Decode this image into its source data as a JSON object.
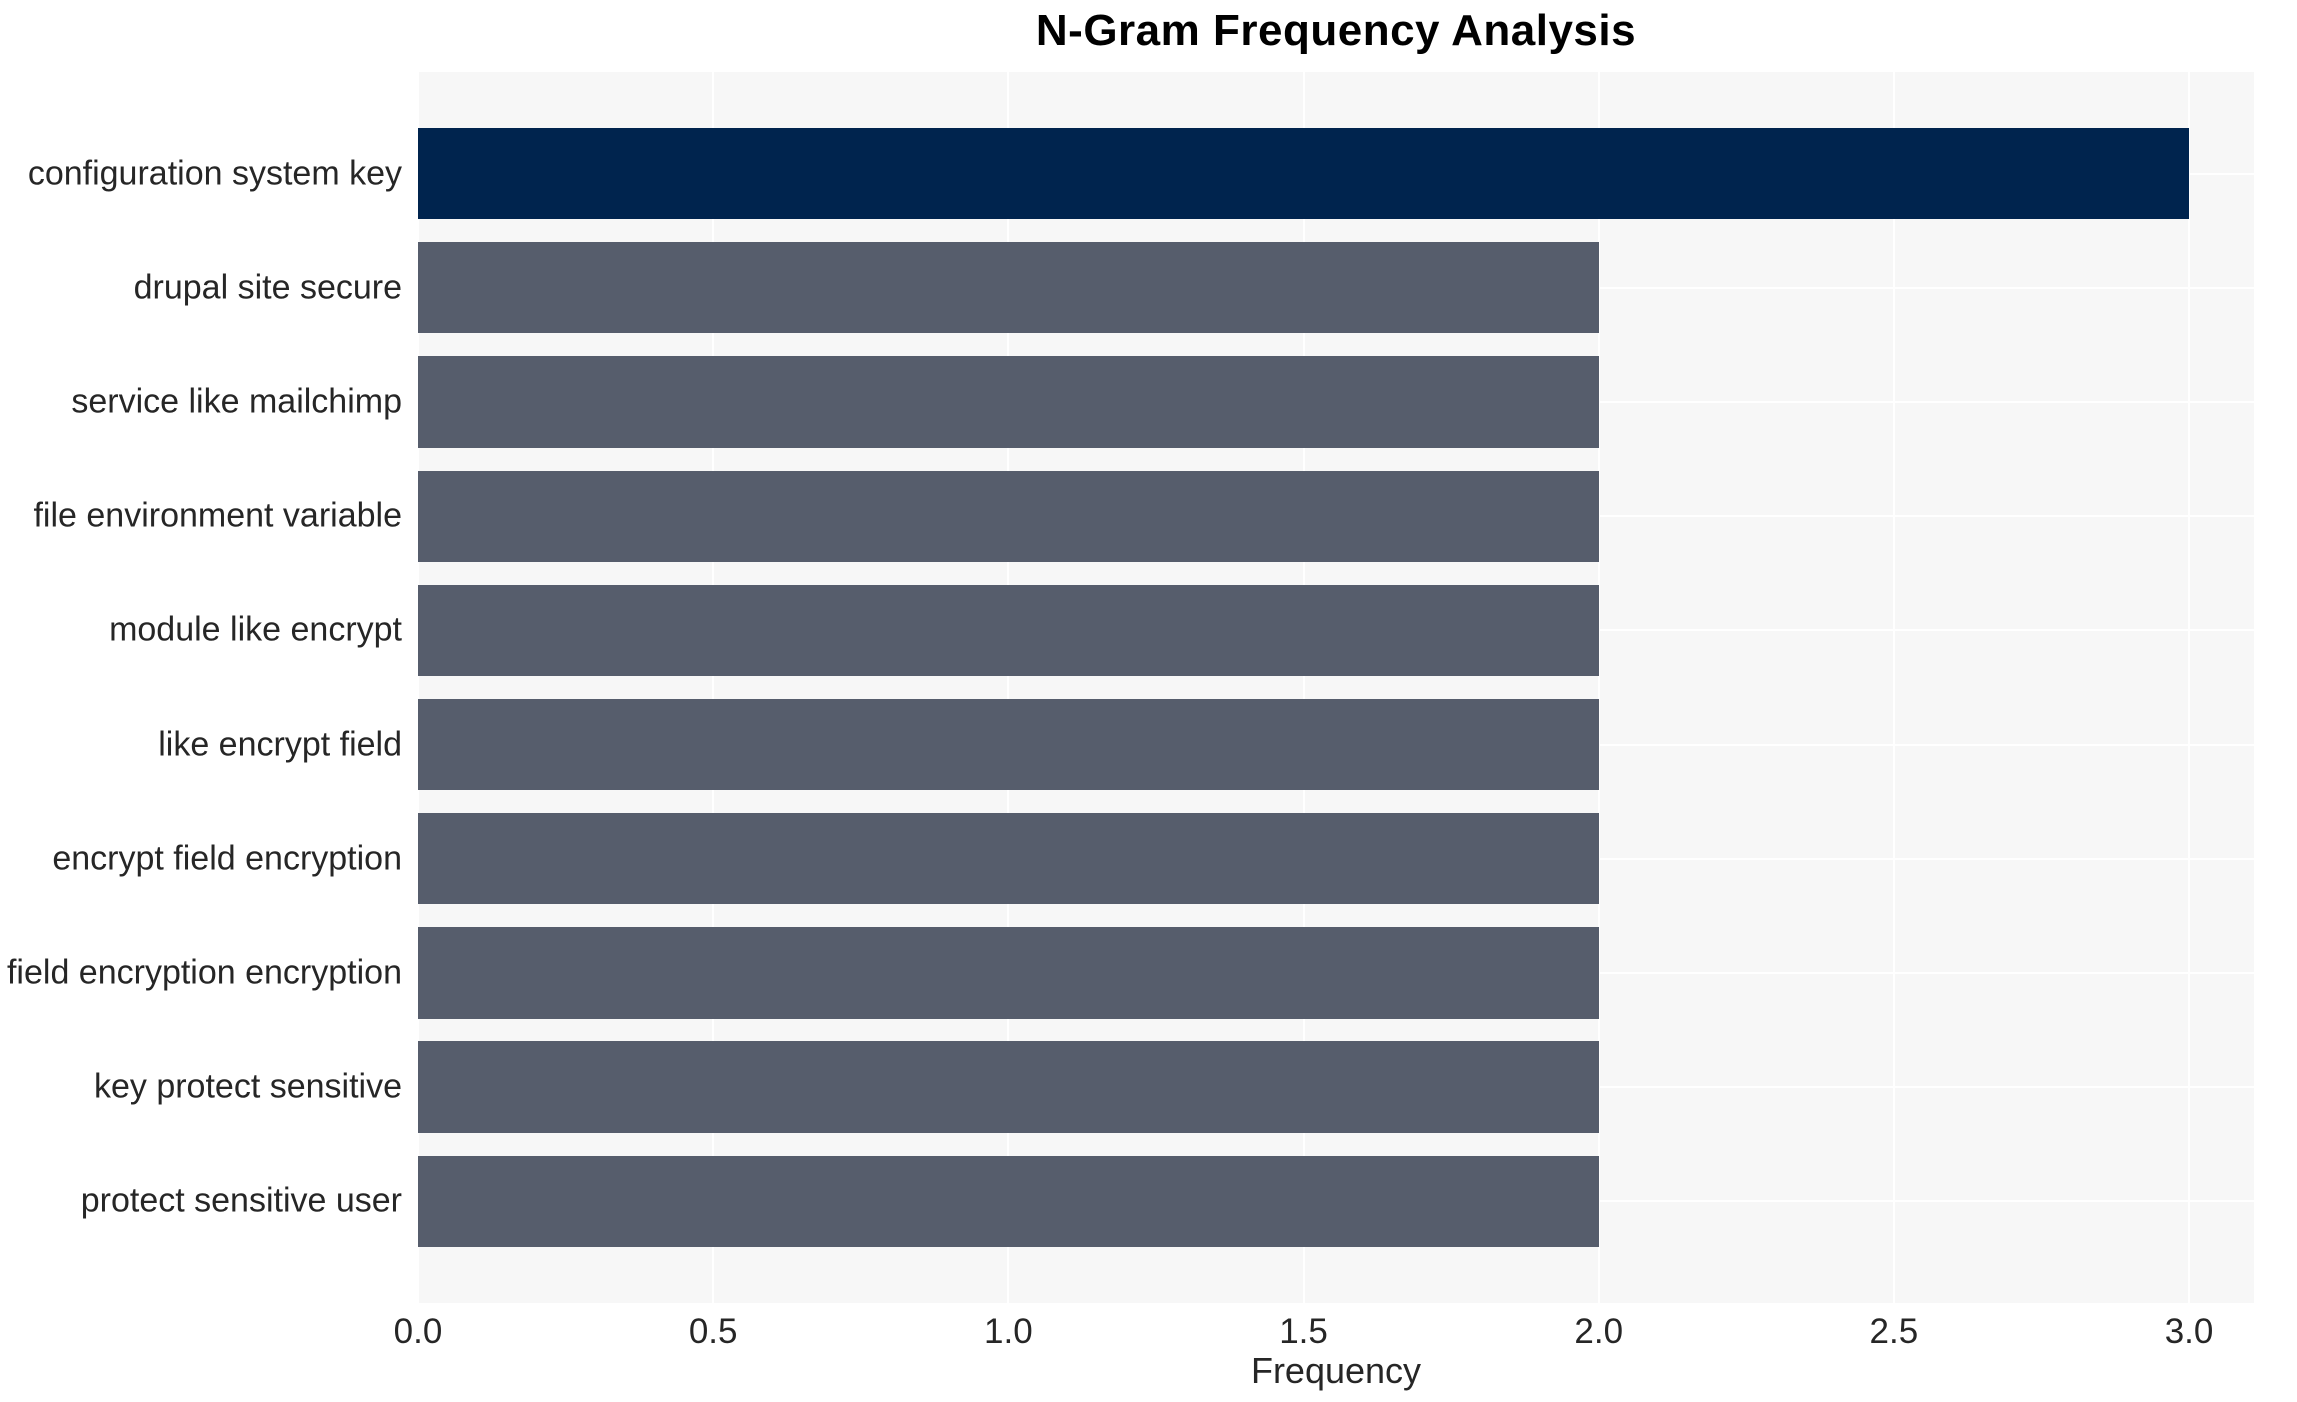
{
  "chart_data": {
    "type": "bar",
    "orientation": "horizontal",
    "title": "N-Gram Frequency Analysis",
    "xlabel": "Frequency",
    "ylabel": "",
    "categories": [
      "configuration system key",
      "drupal site secure",
      "service like mailchimp",
      "file environment variable",
      "module like encrypt",
      "like encrypt field",
      "encrypt field encryption",
      "field encryption encryption",
      "key protect sensitive",
      "protect sensitive user"
    ],
    "values": [
      3,
      2,
      2,
      2,
      2,
      2,
      2,
      2,
      2,
      2
    ],
    "bar_colors": [
      "#00244E",
      "#565D6C",
      "#565D6C",
      "#565D6C",
      "#565D6C",
      "#565D6C",
      "#565D6C",
      "#565D6C",
      "#565D6C",
      "#565D6C"
    ],
    "xticks": [
      0.0,
      0.5,
      1.0,
      1.5,
      2.0,
      2.5,
      3.0
    ],
    "xtick_labels": [
      "0.0",
      "0.5",
      "1.0",
      "1.5",
      "2.0",
      "2.5",
      "3.0"
    ],
    "xlim": [
      0,
      3.11
    ],
    "grid": true,
    "legend": null,
    "colors": {
      "highlight_bar": "#00244E",
      "default_bar": "#565D6C",
      "plot_background": "#F7F7F7",
      "gridline": "#FFFFFF",
      "tick_text": "#262626",
      "title_text": "#000000"
    }
  }
}
